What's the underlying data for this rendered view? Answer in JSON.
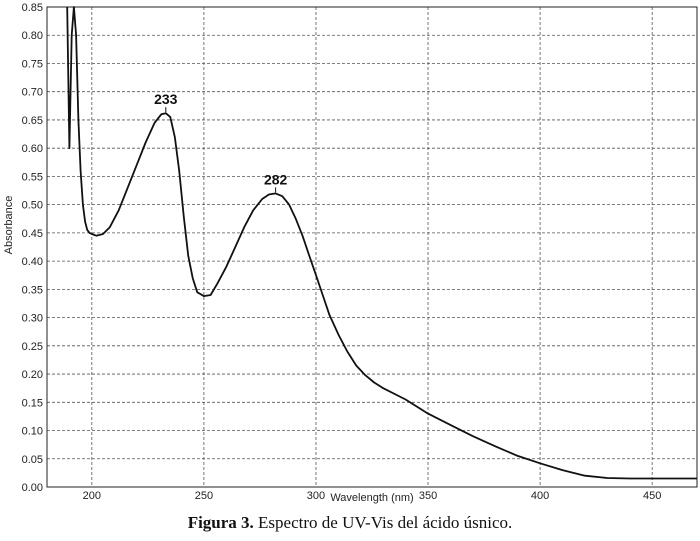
{
  "chart_data": {
    "type": "line",
    "xlabel": "Wavelength (nm)",
    "ylabel": "Absorbance",
    "xlim": [
      180,
      470
    ],
    "ylim": [
      0,
      0.85
    ],
    "grid": true,
    "x_ticks": [
      200,
      250,
      300,
      350,
      400,
      450
    ],
    "y_ticks": [
      0.0,
      0.05,
      0.1,
      0.15,
      0.2,
      0.25,
      0.3,
      0.35,
      0.4,
      0.45,
      0.5,
      0.55,
      0.6,
      0.65,
      0.7,
      0.75,
      0.8,
      0.85
    ],
    "x_tick_labels": [
      "200",
      "250",
      "300",
      "350",
      "400",
      "450"
    ],
    "y_tick_labels": [
      "0.00",
      "0.05",
      "0.10",
      "0.15",
      "0.20",
      "0.25",
      "0.30",
      "0.35",
      "0.40",
      "0.45",
      "0.50",
      "0.55",
      "0.60",
      "0.65",
      "0.70",
      "0.75",
      "0.80",
      "0.85"
    ],
    "annotations": [
      {
        "text": "233",
        "x": 233,
        "y": 0.662
      },
      {
        "text": "282",
        "x": 282,
        "y": 0.52
      }
    ],
    "series": [
      {
        "x": [
          189,
          190,
          191,
          192,
          193,
          194,
          195,
          196,
          197,
          198,
          199,
          200,
          202,
          205,
          208,
          212,
          216,
          220,
          224,
          228,
          231,
          233,
          235,
          237,
          239,
          241,
          243,
          245,
          247,
          250,
          253,
          256,
          260,
          264,
          268,
          272,
          276,
          279,
          282,
          285,
          288,
          291,
          294,
          297,
          300,
          303,
          306,
          310,
          314,
          318,
          322,
          326,
          330,
          340,
          350,
          360,
          370,
          380,
          390,
          400,
          410,
          420,
          430,
          440,
          450,
          460,
          470
        ],
        "y": [
          0.85,
          0.6,
          0.8,
          0.85,
          0.8,
          0.65,
          0.56,
          0.5,
          0.47,
          0.455,
          0.45,
          0.448,
          0.445,
          0.448,
          0.46,
          0.49,
          0.53,
          0.57,
          0.61,
          0.645,
          0.66,
          0.662,
          0.655,
          0.62,
          0.56,
          0.48,
          0.41,
          0.37,
          0.345,
          0.338,
          0.34,
          0.36,
          0.39,
          0.425,
          0.46,
          0.49,
          0.51,
          0.518,
          0.52,
          0.515,
          0.5,
          0.475,
          0.445,
          0.41,
          0.375,
          0.34,
          0.305,
          0.27,
          0.24,
          0.215,
          0.198,
          0.185,
          0.175,
          0.155,
          0.13,
          0.11,
          0.09,
          0.072,
          0.055,
          0.042,
          0.03,
          0.02,
          0.016,
          0.015,
          0.015,
          0.015,
          0.015
        ]
      }
    ]
  },
  "caption": {
    "label": "Figura 3.",
    "text": " Espectro de UV-Vis del ácido úsnico."
  }
}
